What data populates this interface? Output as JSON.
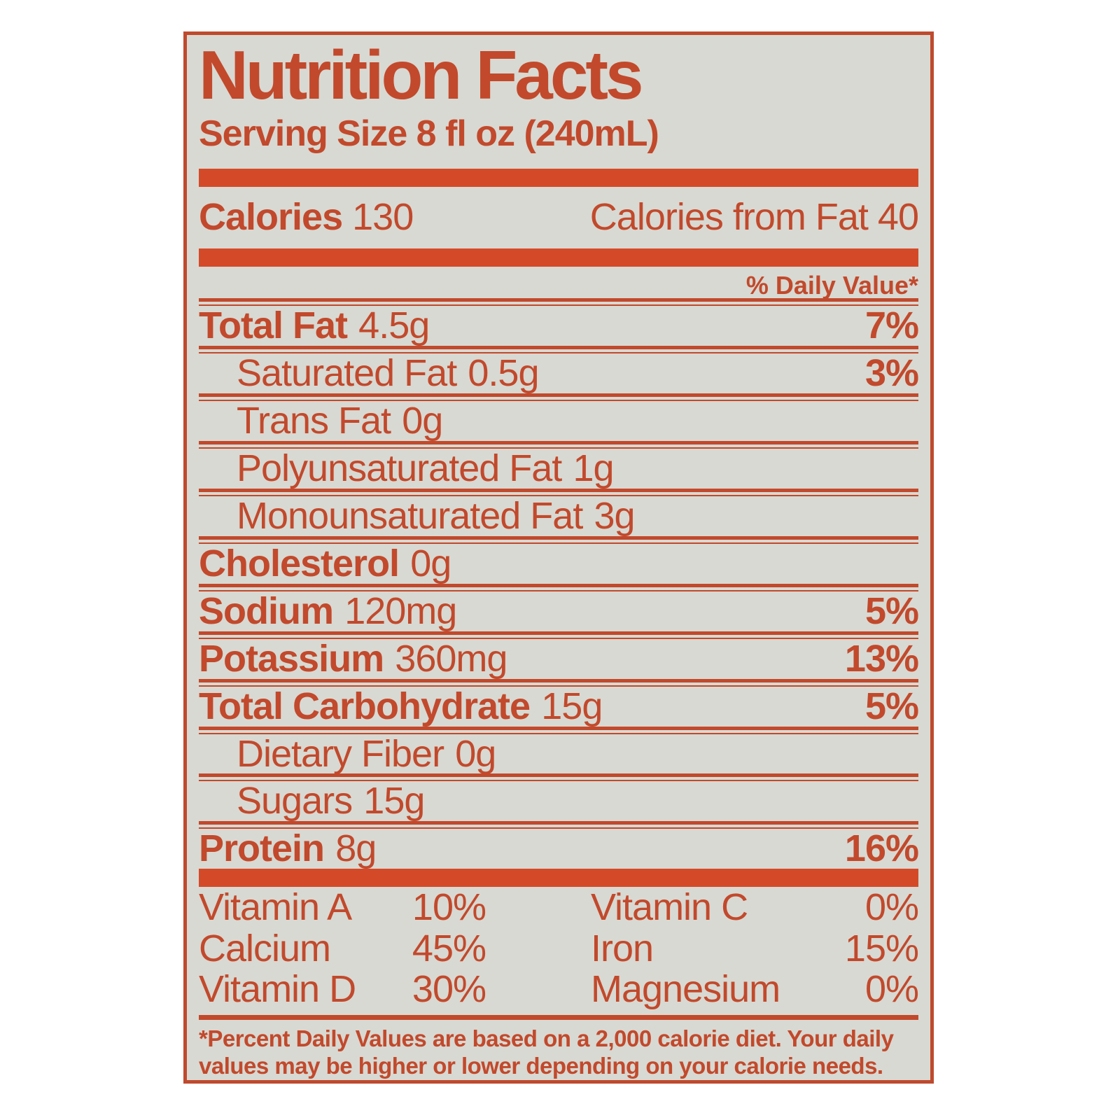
{
  "title": "Nutrition Facts",
  "serving_size": "Serving Size 8 fl oz (240mL)",
  "calories": {
    "label": "Calories",
    "value": "130",
    "from_fat_label": "Calories from Fat",
    "from_fat_value": "40"
  },
  "daily_value_header": "% Daily Value*",
  "nutrients": [
    {
      "name": "Total Fat",
      "amount": "4.5g",
      "dv": "7%"
    },
    {
      "name": "Saturated Fat",
      "amount": "0.5g",
      "dv": "3%"
    },
    {
      "name": "Trans Fat",
      "amount": "0g",
      "dv": ""
    },
    {
      "name": "Polyunsaturated Fat",
      "amount": "1g",
      "dv": ""
    },
    {
      "name": "Monounsaturated Fat",
      "amount": "3g",
      "dv": ""
    },
    {
      "name": "Cholesterol",
      "amount": "0g",
      "dv": ""
    },
    {
      "name": "Sodium",
      "amount": "120mg",
      "dv": "5%"
    },
    {
      "name": "Potassium",
      "amount": "360mg",
      "dv": "13%"
    },
    {
      "name": "Total Carbohydrate",
      "amount": "15g",
      "dv": "5%"
    },
    {
      "name": "Dietary Fiber",
      "amount": "0g",
      "dv": ""
    },
    {
      "name": "Sugars",
      "amount": "15g",
      "dv": ""
    },
    {
      "name": "Protein",
      "amount": "8g",
      "dv": "16%"
    }
  ],
  "vitamins": [
    {
      "lname": "Vitamin A",
      "lval": "10%",
      "rname": "Vitamin C",
      "rval": "0%"
    },
    {
      "lname": "Calcium",
      "lval": "45%",
      "rname": "Iron",
      "rval": "15%"
    },
    {
      "lname": "Vitamin D",
      "lval": "30%",
      "rname": "Magnesium",
      "rval": "0%"
    }
  ],
  "footnote": {
    "line1": "*Percent Daily Values are based on a 2,000 calorie diet. Your daily",
    "line2": "values may be higher or lower depending on your calorie needs."
  },
  "colors": {
    "text": "#c2492c",
    "bar": "#d44a28",
    "background": "#d8d9d2",
    "border": "#bf4a2e",
    "page": "#ffffff"
  }
}
